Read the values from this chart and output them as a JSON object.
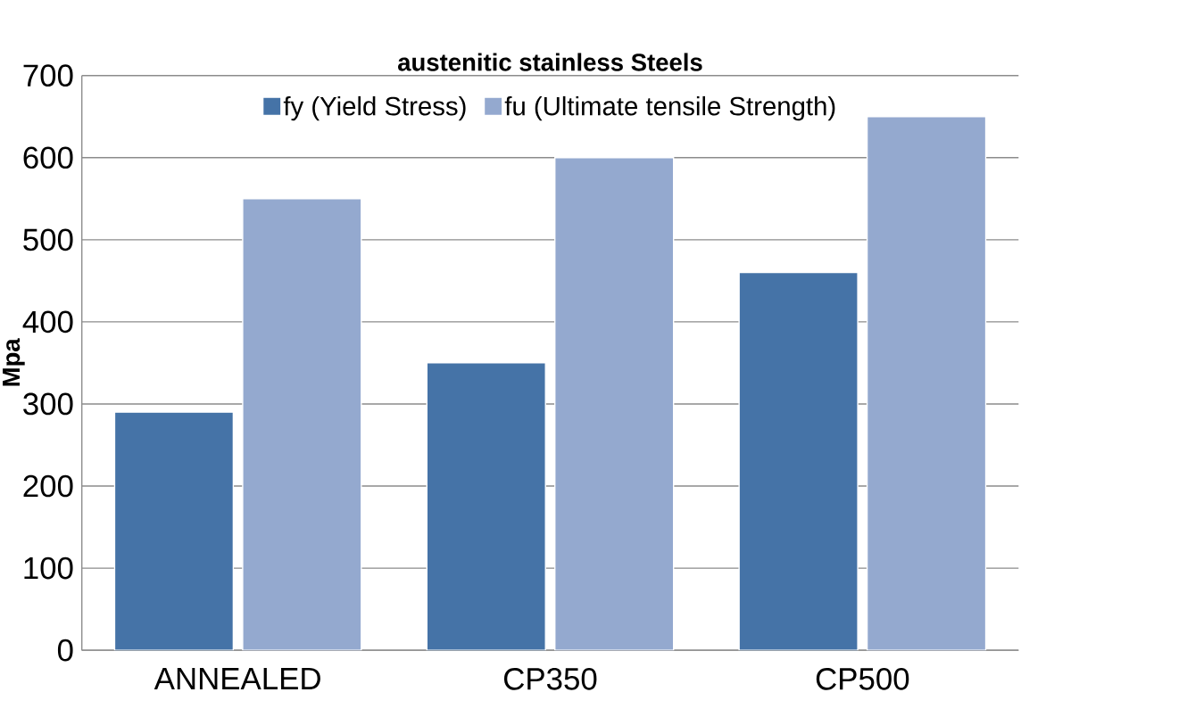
{
  "chart_data": {
    "type": "bar",
    "title": "austenitic stainless Steels",
    "ylabel": "Mpa",
    "categories": [
      "ANNEALED",
      "CP350",
      "CP500"
    ],
    "series": [
      {
        "name": "fy (Yield Stress)",
        "color": "#4573a7",
        "values": [
          290,
          350,
          460
        ]
      },
      {
        "name": "fu (Ultimate tensile Strength)",
        "color": "#94a9cf",
        "values": [
          550,
          600,
          650
        ]
      }
    ],
    "ylim": [
      0,
      700
    ],
    "yticks": [
      0,
      100,
      200,
      300,
      400,
      500,
      600,
      700
    ],
    "grid": "y",
    "legend": "top"
  }
}
